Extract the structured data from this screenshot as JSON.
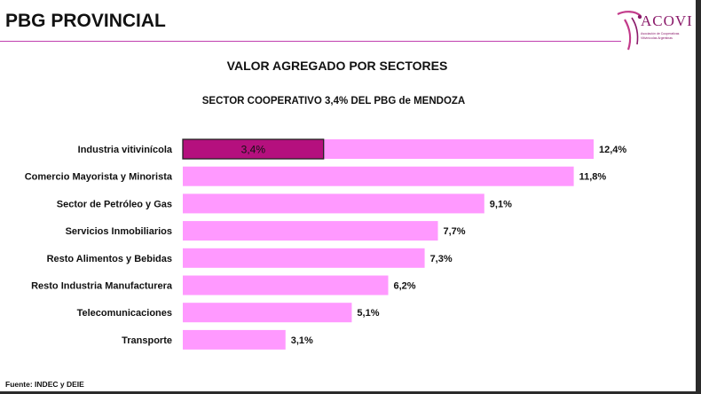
{
  "header": {
    "title": "PBG PROVINCIAL",
    "logo": {
      "name": "ACOVI",
      "sub1": "Asociación de Cooperativas",
      "sub2": "Vitivinícolas Argentinas"
    }
  },
  "colors": {
    "bar": "#ff99ff",
    "highlight": "#b5107e",
    "accent_line": "#c040b0"
  },
  "chart_data": {
    "type": "bar",
    "orientation": "horizontal",
    "title": "VALOR AGREGADO POR SECTORES",
    "subtitle": "SECTOR COOPERATIVO 3,4% DEL PBG de MENDOZA",
    "categories": [
      "Industria vitivinícola",
      "Comercio Mayorista y Minorista",
      "Sector de Petróleo y Gas",
      "Servicios Inmobiliarios",
      "Resto Alimentos y Bebidas",
      "Resto Industria Manufacturera",
      "Telecomunicaciones",
      "Transporte"
    ],
    "values": [
      12.4,
      11.8,
      9.1,
      7.7,
      7.3,
      6.2,
      5.1,
      3.1
    ],
    "value_labels": [
      "12,4%",
      "11,8%",
      "9,1%",
      "7,7%",
      "7,3%",
      "6,2%",
      "5,1%",
      "3,1%"
    ],
    "highlight": {
      "category": "Industria vitivinícola",
      "value": 3.4,
      "label": "3,4%"
    },
    "grid": false,
    "legend": "none"
  },
  "footer": {
    "source": "Fuente: INDEC y DEIE"
  }
}
